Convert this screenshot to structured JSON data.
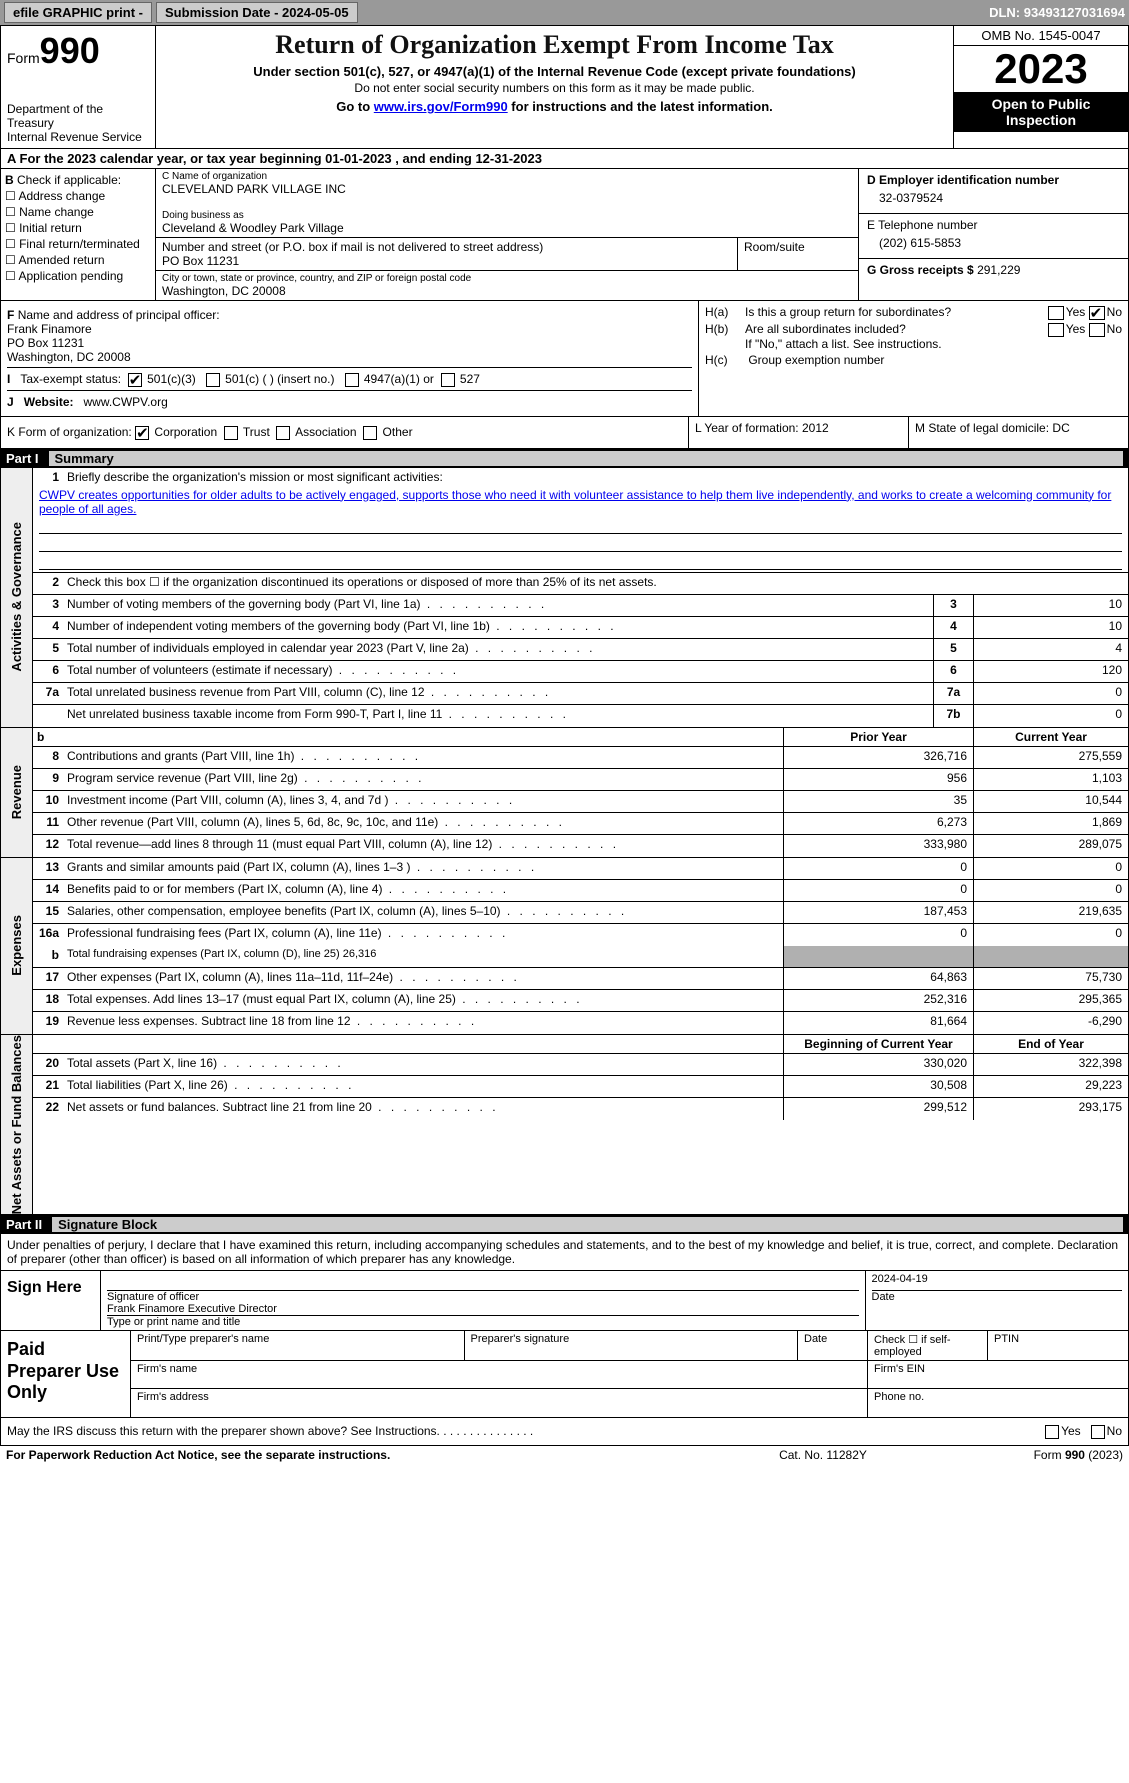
{
  "topbar": {
    "efile": "efile GRAPHIC print - ",
    "submission_label": "Submission Date - ",
    "submission_date": "2024-05-05",
    "dln_label": "DLN: ",
    "dln": "93493127031694"
  },
  "header": {
    "form_label": "Form",
    "form_num": "990",
    "dept": "Department of the Treasury\nInternal Revenue Service",
    "title": "Return of Organization Exempt From Income Tax",
    "sub": "Under section 501(c), 527, or 4947(a)(1) of the Internal Revenue Code (except private foundations)",
    "note": "Do not enter social security numbers on this form as it may be made public.",
    "goto": "Go to ",
    "url": "www.irs.gov/Form990",
    "goto_suffix": " for instructions and the latest information.",
    "omb": "OMB No. 1545-0047",
    "year": "2023",
    "inspect": "Open to Public Inspection"
  },
  "A": {
    "label": "A",
    "text": "For the 2023 calendar year, or tax year beginning ",
    "begin": "01-01-2023",
    "mid": "  , and ending ",
    "end": "12-31-2023"
  },
  "B": {
    "label": "B",
    "check_label": "Check if applicable:",
    "opts": [
      "Address change",
      "Name change",
      "Initial return",
      "Final return/terminated",
      "Amended return",
      "Application pending"
    ]
  },
  "C": {
    "name_label": "C Name of organization",
    "name": "CLEVELAND PARK VILLAGE INC",
    "dba_label": "Doing business as",
    "dba": "Cleveland & Woodley Park Village",
    "addr_label": "Number and street (or P.O. box if mail is not delivered to street address)",
    "addr": "PO Box 11231",
    "room_label": "Room/suite",
    "city_label": "City or town, state or province, country, and ZIP or foreign postal code",
    "city": "Washington, DC  20008"
  },
  "D": {
    "ein_label": "D Employer identification number",
    "ein": "32-0379524",
    "tel_label": "E Telephone number",
    "tel": "(202) 615-5853",
    "gross_label": "G Gross receipts $ ",
    "gross": "291,229"
  },
  "F": {
    "label": "F",
    "text": "  Name and address of principal officer:",
    "name": "Frank Finamore",
    "addr1": "PO Box 11231",
    "addr2": "Washington, DC  20008"
  },
  "I": {
    "label": "I",
    "text": "Tax-exempt status:",
    "opt1": "501(c)(3)",
    "opt2": "501(c) (   ) (insert no.)",
    "opt3": "4947(a)(1) or",
    "opt4": "527"
  },
  "J": {
    "label": "J",
    "text": "Website: ",
    "url": "www.CWPV.org"
  },
  "H": {
    "a_label": "H(a)",
    "a_text": "Is this a group return for subordinates?",
    "b_label": "H(b)",
    "b_text": "Are all subordinates included?",
    "b_note": "If \"No,\" attach a list. See instructions.",
    "c_label": "H(c)",
    "c_text": "Group exemption number ",
    "yes": "Yes",
    "no": "No"
  },
  "K": {
    "label": "K",
    "text": " Form of organization: ",
    "opts": [
      "Corporation",
      "Trust",
      "Association",
      "Other"
    ]
  },
  "L": {
    "label": "L",
    "text": " Year of formation: ",
    "val": "2012"
  },
  "M": {
    "label": "M",
    "text": " State of legal domicile: ",
    "val": "DC"
  },
  "part1": {
    "num": "Part I",
    "title": "Summary"
  },
  "gov": {
    "tab": "Activities & Governance",
    "l1_num": "1",
    "l1": "Briefly describe the organization's mission or most significant activities:",
    "mission": "CWPV creates opportunities for older adults to be actively engaged, supports those who need it with volunteer assistance to help them live independently, and works to create a welcoming community for people of all ages.",
    "l2_num": "2",
    "l2": "Check this box ☐  if the organization discontinued its operations or disposed of more than 25% of its net assets.",
    "rows": [
      {
        "n": "3",
        "t": "Number of voting members of the governing body (Part VI, line 1a)",
        "box": "3",
        "v": "10"
      },
      {
        "n": "4",
        "t": "Number of independent voting members of the governing body (Part VI, line 1b)",
        "box": "4",
        "v": "10"
      },
      {
        "n": "5",
        "t": "Total number of individuals employed in calendar year 2023 (Part V, line 2a)",
        "box": "5",
        "v": "4"
      },
      {
        "n": "6",
        "t": "Total number of volunteers (estimate if necessary)",
        "box": "6",
        "v": "120"
      },
      {
        "n": "7a",
        "t": "Total unrelated business revenue from Part VIII, column (C), line 12",
        "box": "7a",
        "v": "0"
      },
      {
        "n": "",
        "t": "Net unrelated business taxable income from Form 990-T, Part I, line 11",
        "box": "7b",
        "v": "0"
      }
    ]
  },
  "rev": {
    "tab": "Revenue",
    "hdr_b": "b",
    "col1": "Prior Year",
    "col2": "Current Year",
    "rows": [
      {
        "n": "8",
        "t": "Contributions and grants (Part VIII, line 1h)",
        "py": "326,716",
        "cy": "275,559"
      },
      {
        "n": "9",
        "t": "Program service revenue (Part VIII, line 2g)",
        "py": "956",
        "cy": "1,103"
      },
      {
        "n": "10",
        "t": "Investment income (Part VIII, column (A), lines 3, 4, and 7d )",
        "py": "35",
        "cy": "10,544"
      },
      {
        "n": "11",
        "t": "Other revenue (Part VIII, column (A), lines 5, 6d, 8c, 9c, 10c, and 11e)",
        "py": "6,273",
        "cy": "1,869"
      },
      {
        "n": "12",
        "t": "Total revenue—add lines 8 through 11 (must equal Part VIII, column (A), line 12)",
        "py": "333,980",
        "cy": "289,075"
      }
    ]
  },
  "exp": {
    "tab": "Expenses",
    "rows": [
      {
        "n": "13",
        "t": "Grants and similar amounts paid (Part IX, column (A), lines 1–3 )",
        "py": "0",
        "cy": "0"
      },
      {
        "n": "14",
        "t": "Benefits paid to or for members (Part IX, column (A), line 4)",
        "py": "0",
        "cy": "0"
      },
      {
        "n": "15",
        "t": "Salaries, other compensation, employee benefits (Part IX, column (A), lines 5–10)",
        "py": "187,453",
        "cy": "219,635"
      },
      {
        "n": "16a",
        "t": "Professional fundraising fees (Part IX, column (A), line 11e)",
        "py": "0",
        "cy": "0"
      }
    ],
    "l16b_n": "b",
    "l16b": "Total fundraising expenses (Part IX, column (D), line 25) ",
    "l16b_v": "26,316",
    "rows2": [
      {
        "n": "17",
        "t": "Other expenses (Part IX, column (A), lines 11a–11d, 11f–24e)",
        "py": "64,863",
        "cy": "75,730"
      },
      {
        "n": "18",
        "t": "Total expenses. Add lines 13–17 (must equal Part IX, column (A), line 25)",
        "py": "252,316",
        "cy": "295,365"
      },
      {
        "n": "19",
        "t": "Revenue less expenses. Subtract line 18 from line 12",
        "py": "81,664",
        "cy": "-6,290"
      }
    ]
  },
  "net": {
    "tab": "Net Assets or Fund Balances",
    "col1": "Beginning of Current Year",
    "col2": "End of Year",
    "rows": [
      {
        "n": "20",
        "t": "Total assets (Part X, line 16)",
        "py": "330,020",
        "cy": "322,398"
      },
      {
        "n": "21",
        "t": "Total liabilities (Part X, line 26)",
        "py": "30,508",
        "cy": "29,223"
      },
      {
        "n": "22",
        "t": "Net assets or fund balances. Subtract line 21 from line 20",
        "py": "299,512",
        "cy": "293,175"
      }
    ]
  },
  "part2": {
    "num": "Part II",
    "title": "Signature Block"
  },
  "sig": {
    "intro": "Under penalties of perjury, I declare that I have examined this return, including accompanying schedules and statements, and to the best of my knowledge and belief, it is true, correct, and complete. Declaration of preparer (other than officer) is based on all information of which preparer has any knowledge.",
    "sign_here": "Sign Here",
    "date": "2024-04-19",
    "sig_label": "Signature of officer",
    "date_label": "Date",
    "name": "Frank Finamore  Executive Director",
    "name_label": "Type or print name and title"
  },
  "paid": {
    "label": "Paid Preparer Use Only",
    "c1": "Print/Type preparer's name",
    "c2": "Preparer's signature",
    "c3": "Date",
    "c4_chk": "Check ☐ if self-employed",
    "c5": "PTIN",
    "firm_name": "Firm's name  ",
    "firm_ein": "Firm's EIN  ",
    "firm_addr": "Firm's address  ",
    "phone": "Phone no."
  },
  "discuss": {
    "q": "May the IRS discuss this return with the preparer shown above? See Instructions.",
    "yes": "Yes",
    "no": "No"
  },
  "footer": {
    "l": "For Paperwork Reduction Act Notice, see the separate instructions.",
    "m": "Cat. No. 11282Y",
    "r": "Form 990 (2023)"
  }
}
